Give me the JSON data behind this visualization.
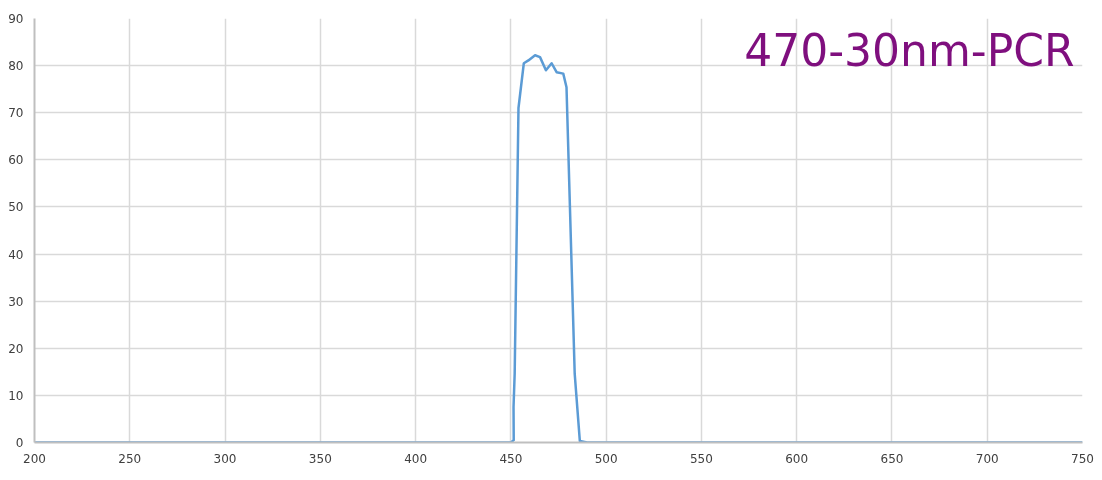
{
  "chart_data": {
    "type": "line",
    "annotations": [
      "470-30nm-PCR"
    ],
    "series": [
      {
        "color": "#5b9bd5",
        "x": [
          200,
          300,
          400,
          450,
          451.5,
          451.4,
          452,
          454,
          456.8,
          459.2,
          462.7,
          465.3,
          468.4,
          471.4,
          474,
          477.5,
          479.2,
          481,
          483.5,
          486.2,
          490,
          550,
          650,
          750
        ],
        "values": [
          0,
          0,
          0,
          0,
          0.5,
          7.5,
          14.6,
          71,
          80.5,
          81.1,
          82.2,
          81.8,
          79,
          80.5,
          78.6,
          78.3,
          75.4,
          50,
          14.6,
          0.3,
          0,
          0,
          0,
          0
        ]
      }
    ],
    "xlim": [
      200,
      750
    ],
    "ylim": [
      0,
      90
    ],
    "xticks": [
      200,
      250,
      300,
      350,
      400,
      450,
      500,
      550,
      600,
      650,
      700,
      750
    ],
    "yticks": [
      0,
      10,
      20,
      30,
      40,
      50,
      60,
      70,
      80,
      90
    ],
    "grid": true,
    "marker": "none",
    "line_style": "solid"
  }
}
